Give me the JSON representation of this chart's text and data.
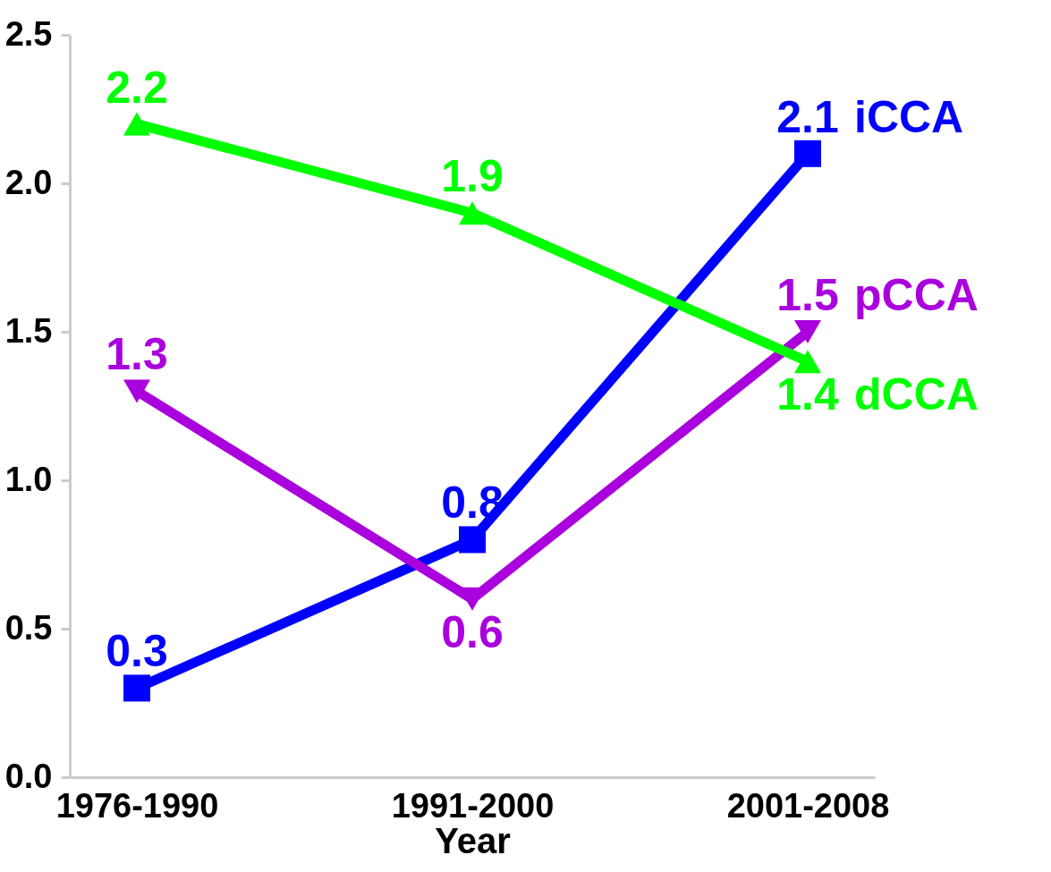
{
  "chart_data": {
    "type": "line",
    "xlabel": "Year",
    "categories": [
      "1976-1990",
      "1991-2000",
      "2001-2008"
    ],
    "series": [
      {
        "name": "iCCA",
        "color": "#0000ff",
        "marker": "square",
        "values": [
          0.3,
          0.8,
          2.1
        ]
      },
      {
        "name": "pCCA",
        "color": "#aa00dd",
        "marker": "triangle-down",
        "values": [
          1.3,
          0.6,
          1.5
        ]
      },
      {
        "name": "dCCA",
        "color": "#00ff00",
        "marker": "triangle",
        "values": [
          2.2,
          1.9,
          1.4
        ]
      }
    ],
    "ylim": [
      0,
      2.5
    ],
    "yticks": [
      {
        "value": 0,
        "label": "0.0"
      },
      0.5,
      {
        "value": 1,
        "label": "1.0"
      },
      1.5,
      {
        "value": 2,
        "label": "2.0"
      },
      2.5
    ],
    "data_labels": true,
    "grid": false,
    "line_style": "solid"
  }
}
